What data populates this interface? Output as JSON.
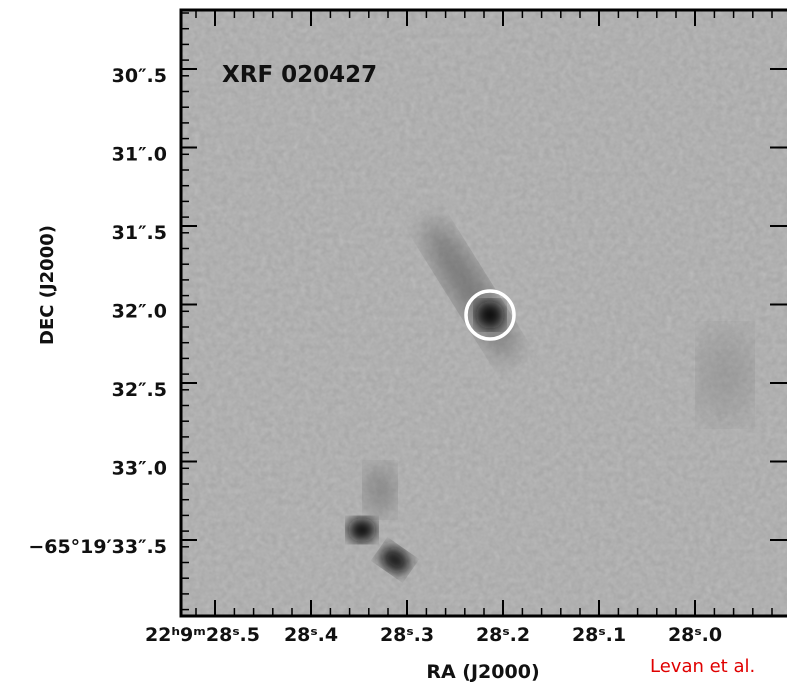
{
  "figure": {
    "label": "XRF 020427",
    "y_axis_label": "DEC (J2000)",
    "x_axis_label": "RA (J2000)",
    "y_tick_labels": [
      "30″.5",
      "31″.0",
      "31″.5",
      "32″.0",
      "32″.5",
      "33″.0",
      "−65°19′33″.5"
    ],
    "x_tick_labels": [
      "22ʰ9ᵐ28ˢ.5",
      "28ˢ.4",
      "28ˢ.3",
      "28ˢ.2",
      "28ˢ.1",
      "28ˢ.0"
    ],
    "credit": "Levan et al."
  }
}
